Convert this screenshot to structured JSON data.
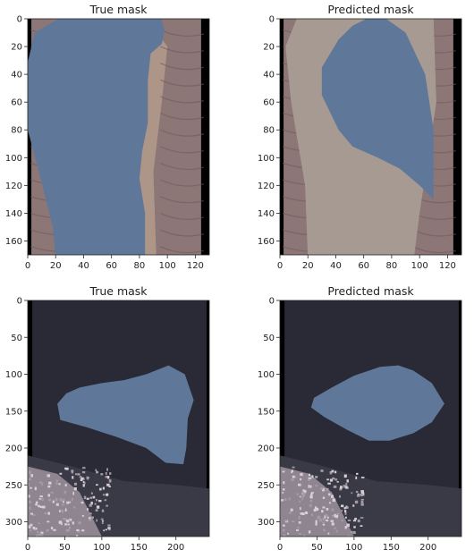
{
  "chart_data": [
    {
      "type": "image",
      "title": "True mask",
      "x_ticks": [
        "0",
        "20",
        "40",
        "60",
        "80",
        "100",
        "120"
      ],
      "y_ticks": [
        "0",
        "20",
        "40",
        "60",
        "80",
        "100",
        "120",
        "140",
        "160"
      ],
      "xlim": [
        0,
        130
      ],
      "ylim": [
        170,
        0
      ],
      "x_tick_values": [
        0,
        20,
        40,
        60,
        80,
        100,
        120
      ],
      "y_tick_values": [
        0,
        20,
        40,
        60,
        80,
        100,
        120,
        140,
        160
      ],
      "scene": "terrain",
      "mask_color": "#5f7899",
      "mask_shape": [
        [
          22,
          0
        ],
        [
          95,
          -2
        ],
        [
          98,
          8
        ],
        [
          96,
          18
        ],
        [
          88,
          25
        ],
        [
          86,
          45
        ],
        [
          86,
          75
        ],
        [
          82,
          95
        ],
        [
          80,
          115
        ],
        [
          84,
          140
        ],
        [
          84,
          172
        ],
        [
          20,
          172
        ],
        [
          18,
          150
        ],
        [
          8,
          110
        ],
        [
          0,
          80
        ],
        [
          -2,
          40
        ],
        [
          5,
          10
        ]
      ]
    },
    {
      "type": "image",
      "title": "Predicted mask",
      "x_ticks": [
        "0",
        "20",
        "40",
        "60",
        "80",
        "100",
        "120"
      ],
      "y_ticks": [
        "0",
        "20",
        "40",
        "60",
        "80",
        "100",
        "120",
        "140",
        "160"
      ],
      "xlim": [
        0,
        130
      ],
      "ylim": [
        170,
        0
      ],
      "x_tick_values": [
        0,
        20,
        40,
        60,
        80,
        100,
        120
      ],
      "y_tick_values": [
        0,
        20,
        40,
        60,
        80,
        100,
        120,
        140,
        160
      ],
      "scene": "terrain",
      "mask_color": "#5f7899",
      "mask_shape": [
        [
          62,
          0
        ],
        [
          76,
          0
        ],
        [
          90,
          10
        ],
        [
          104,
          40
        ],
        [
          110,
          80
        ],
        [
          110,
          130
        ],
        [
          100,
          120
        ],
        [
          86,
          108
        ],
        [
          70,
          100
        ],
        [
          52,
          92
        ],
        [
          42,
          80
        ],
        [
          30,
          55
        ],
        [
          30,
          35
        ],
        [
          42,
          15
        ],
        [
          52,
          5
        ]
      ]
    },
    {
      "type": "image",
      "title": "True mask",
      "x_ticks": [
        "0",
        "50",
        "100",
        "150",
        "200"
      ],
      "y_ticks": [
        "0",
        "50",
        "100",
        "150",
        "200",
        "250",
        "300"
      ],
      "xlim": [
        0,
        245
      ],
      "ylim": [
        320,
        0
      ],
      "x_tick_values": [
        0,
        50,
        100,
        150,
        200
      ],
      "y_tick_values": [
        0,
        50,
        100,
        150,
        200,
        250,
        300
      ],
      "scene": "dark",
      "mask_color": "#5f7899",
      "mask_shape": [
        [
          70,
          118
        ],
        [
          100,
          112
        ],
        [
          130,
          108
        ],
        [
          160,
          100
        ],
        [
          190,
          88
        ],
        [
          212,
          100
        ],
        [
          224,
          135
        ],
        [
          216,
          160
        ],
        [
          214,
          200
        ],
        [
          210,
          222
        ],
        [
          186,
          220
        ],
        [
          160,
          200
        ],
        [
          120,
          185
        ],
        [
          80,
          172
        ],
        [
          44,
          162
        ],
        [
          40,
          140
        ],
        [
          52,
          126
        ]
      ]
    },
    {
      "type": "image",
      "title": "Predicted mask",
      "x_ticks": [
        "0",
        "50",
        "100",
        "150",
        "200"
      ],
      "y_ticks": [
        "0",
        "50",
        "100",
        "150",
        "200",
        "250",
        "300"
      ],
      "xlim": [
        0,
        245
      ],
      "ylim": [
        320,
        0
      ],
      "x_tick_values": [
        0,
        50,
        100,
        150,
        200
      ],
      "y_tick_values": [
        0,
        50,
        100,
        150,
        200,
        250,
        300
      ],
      "scene": "dark",
      "mask_color": "#5f7899",
      "mask_shape": [
        [
          70,
          118
        ],
        [
          100,
          102
        ],
        [
          135,
          90
        ],
        [
          160,
          88
        ],
        [
          180,
          95
        ],
        [
          205,
          112
        ],
        [
          222,
          140
        ],
        [
          205,
          165
        ],
        [
          180,
          180
        ],
        [
          148,
          190
        ],
        [
          120,
          190
        ],
        [
          90,
          175
        ],
        [
          60,
          158
        ],
        [
          42,
          145
        ],
        [
          46,
          132
        ]
      ]
    }
  ]
}
